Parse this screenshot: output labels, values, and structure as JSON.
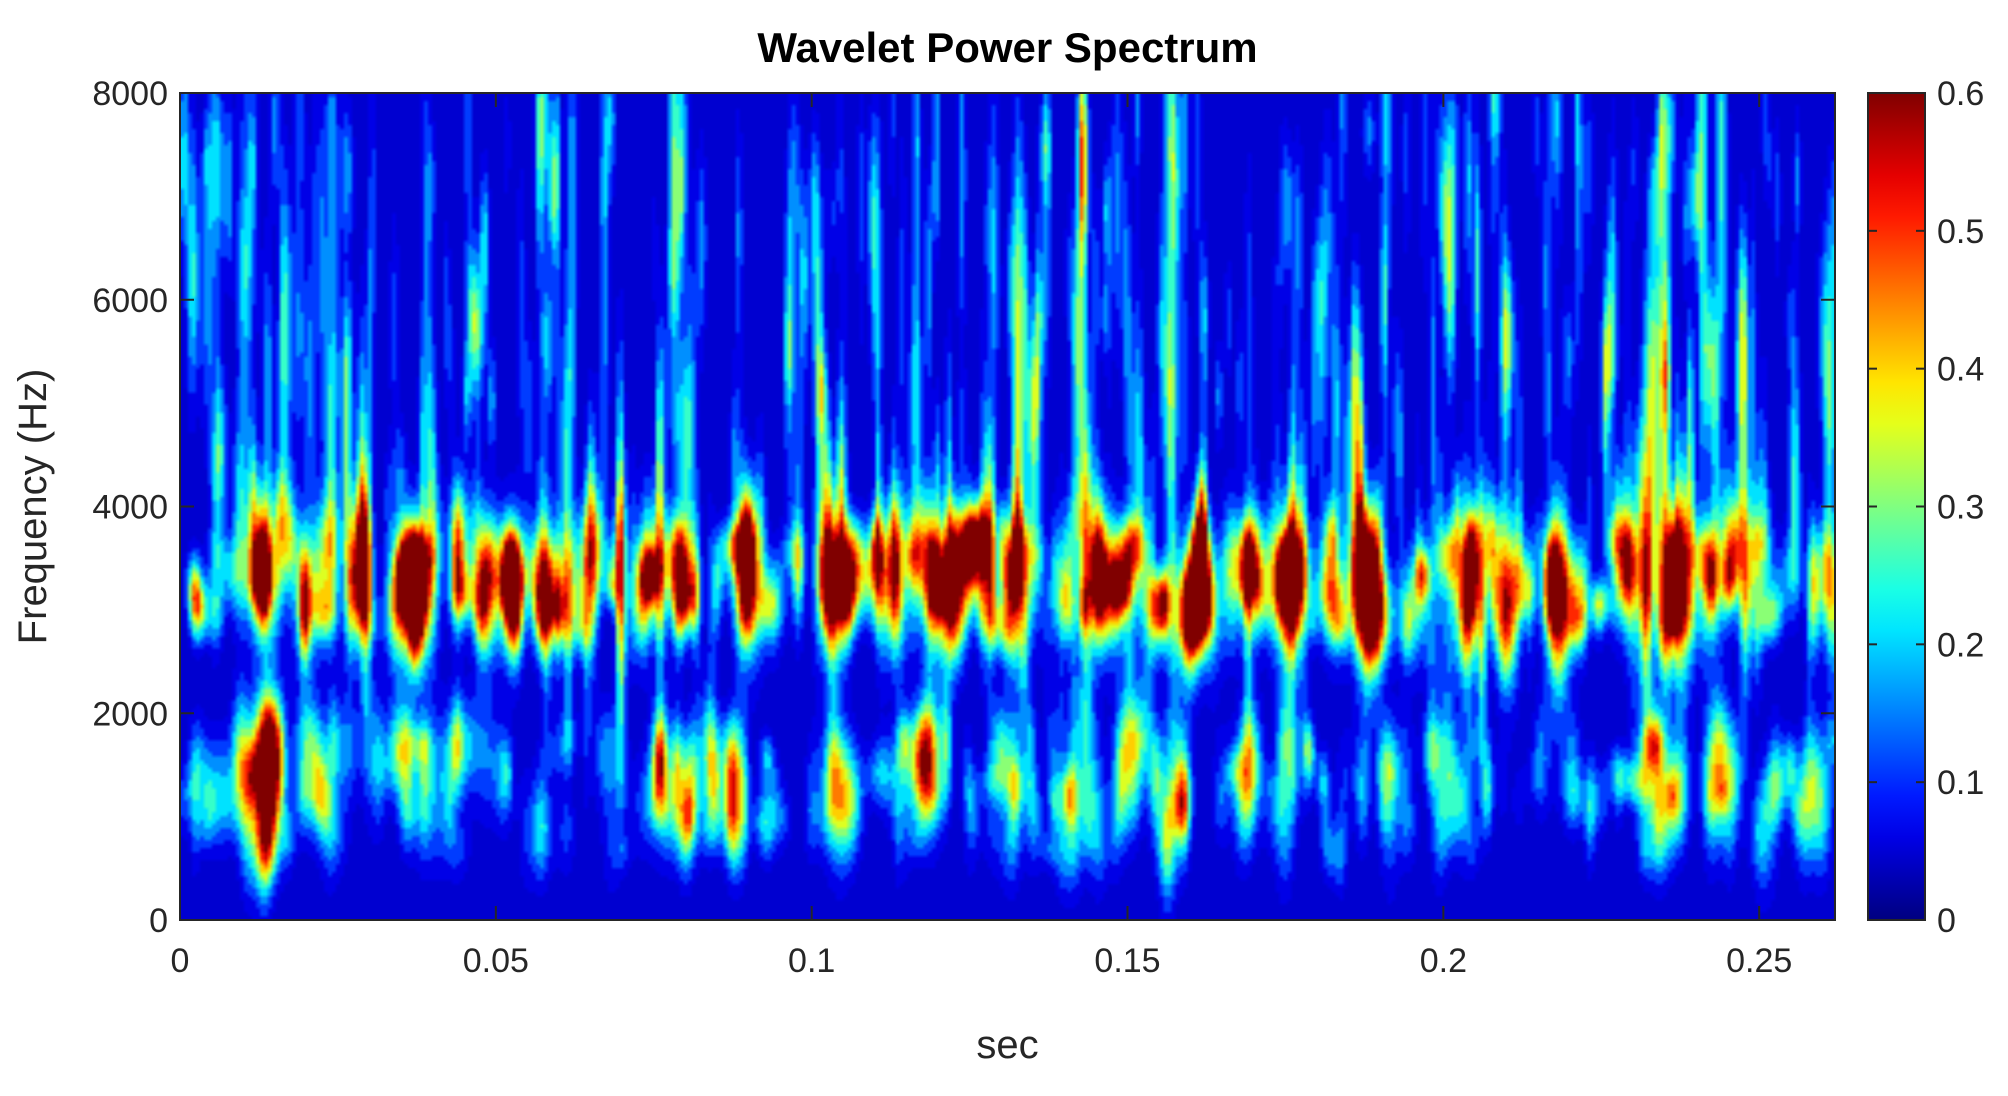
{
  "chart_data": {
    "type": "heatmap",
    "title": "Wavelet Power Spectrum",
    "xlabel": "sec",
    "ylabel": "Frequency (Hz)",
    "xlim": [
      0,
      0.262
    ],
    "ylim": [
      0,
      8000
    ],
    "xticks": [
      0,
      0.05,
      0.1,
      0.15,
      0.2,
      0.25
    ],
    "xtick_labels": [
      "0",
      "0.05",
      "0.1",
      "0.15",
      "0.2",
      "0.25"
    ],
    "yticks": [
      0,
      2000,
      4000,
      6000,
      8000
    ],
    "ytick_labels": [
      "0",
      "2000",
      "4000",
      "6000",
      "8000"
    ],
    "colorbar": {
      "colormap": "jet",
      "range": [
        0,
        0.6
      ],
      "ticks": [
        0,
        0.1,
        0.2,
        0.3,
        0.4,
        0.5,
        0.6
      ],
      "tick_labels": [
        "0",
        "0.1",
        "0.2",
        "0.3",
        "0.4",
        "0.5",
        "0.6"
      ]
    },
    "background_power": 0.02,
    "bands": [
      {
        "name": "main",
        "freq_center_hz": 3300,
        "freq_halfwidth_hz": 450
      },
      {
        "name": "low",
        "freq_center_hz": 1500,
        "freq_halfwidth_hz": 350
      },
      {
        "name": "floor",
        "freq_center_hz": 900,
        "freq_halfwidth_hz": 250
      }
    ],
    "peaks": [
      {
        "t": 0.013,
        "f": 3350,
        "power": 0.52
      },
      {
        "t": 0.035,
        "f": 3300,
        "power": 0.55
      },
      {
        "t": 0.037,
        "f": 3200,
        "power": 0.54
      },
      {
        "t": 0.052,
        "f": 3300,
        "power": 0.53
      },
      {
        "t": 0.102,
        "f": 3300,
        "power": 0.45
      },
      {
        "t": 0.119,
        "f": 3350,
        "power": 0.6
      },
      {
        "t": 0.145,
        "f": 3350,
        "power": 0.48
      },
      {
        "t": 0.148,
        "f": 3250,
        "power": 0.4
      },
      {
        "t": 0.174,
        "f": 3250,
        "power": 0.45
      },
      {
        "t": 0.176,
        "f": 3200,
        "power": 0.47
      },
      {
        "t": 0.204,
        "f": 3300,
        "power": 0.52
      },
      {
        "t": 0.217,
        "f": 3300,
        "power": 0.55
      },
      {
        "t": 0.236,
        "f": 3200,
        "power": 0.5
      },
      {
        "t": 0.242,
        "f": 3300,
        "power": 0.46
      }
    ]
  }
}
